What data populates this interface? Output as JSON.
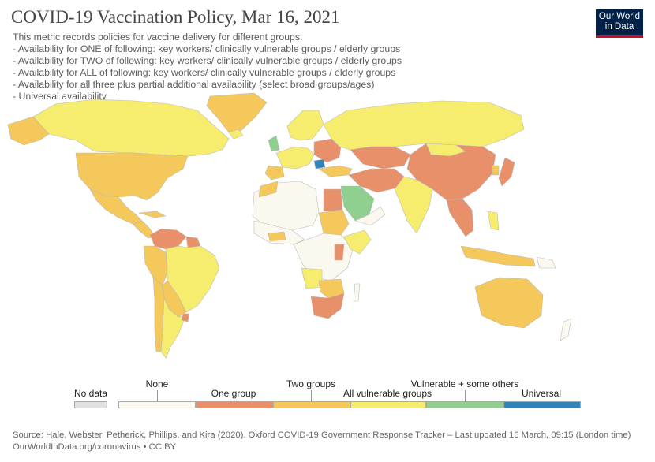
{
  "header": {
    "title": "COVID-19 Vaccination Policy, Mar 16, 2021",
    "subtitle_lines": [
      "This metric records policies for vaccine delivery for different groups.",
      " - Availability for ONE of following: key workers/ clinically vulnerable groups / elderly groups",
      " - Availability for TWO of following: key workers/ clinically vulnerable groups / elderly groups",
      " - Availability for ALL of following: key workers/ clinically vulnerable groups / elderly groups",
      " - Availability for all three plus partial additional availability (select broad groups/ages)",
      " - Universal availability"
    ]
  },
  "logo": {
    "line1": "Our World",
    "line2": "in Data"
  },
  "legend": {
    "no_data": {
      "label": "No data",
      "color": "#e0e0e0"
    },
    "categories": [
      {
        "label": "None",
        "color": "#fbf8ef"
      },
      {
        "label": "One group",
        "color": "#e8906a"
      },
      {
        "label": "Two groups",
        "color": "#f4c85a"
      },
      {
        "label": "All vulnerable groups",
        "color": "#f6ec6e"
      },
      {
        "label": "Vulnerable + some others",
        "color": "#8fcf8f"
      },
      {
        "label": "Universal",
        "color": "#3582b4"
      }
    ]
  },
  "colors": {
    "ocean": "#ffffff",
    "border": "#bbbbbb"
  },
  "footer": {
    "source": "Source: Hale, Webster, Petherick, Phillips, and Kira (2020). Oxford COVID-19 Government Response Tracker – Last updated 16 March, 09:15 (London time)",
    "link": "OurWorldInData.org/coronavirus • CC BY"
  }
}
